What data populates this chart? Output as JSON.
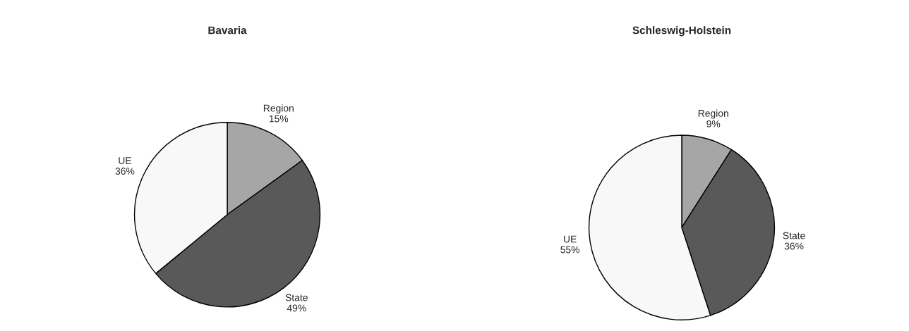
{
  "chart_data": [
    {
      "type": "pie",
      "title": "Bavaria",
      "categories": [
        "Region",
        "State",
        "UE"
      ],
      "values": [
        15,
        49,
        36
      ],
      "value_labels": [
        "15%",
        "49%",
        "36%"
      ],
      "colors": [
        "#a6a6a6",
        "#595959",
        "#f8f8f8"
      ]
    },
    {
      "type": "pie",
      "title": "Schleswig-Holstein",
      "categories": [
        "Region",
        "State",
        "UE"
      ],
      "values": [
        9,
        36,
        55
      ],
      "value_labels": [
        "9%",
        "36%",
        "55%"
      ],
      "colors": [
        "#a6a6a6",
        "#595959",
        "#f8f8f8"
      ]
    }
  ]
}
